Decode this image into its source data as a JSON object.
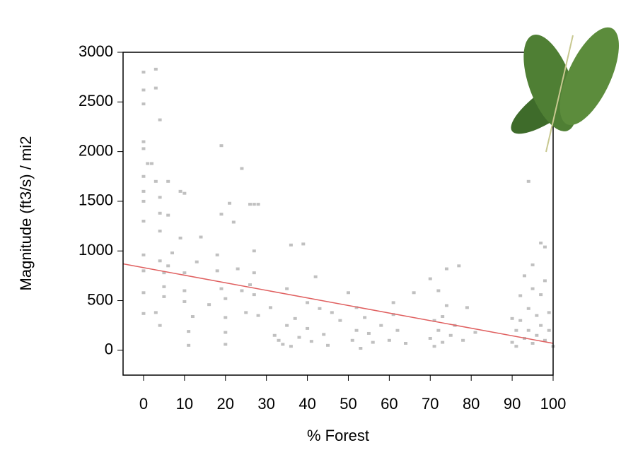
{
  "chart_data": {
    "type": "scatter",
    "xlabel": "% Forest",
    "ylabel": "Magnitude (ft3/s) / mi2",
    "xlim": [
      -5,
      100
    ],
    "ylim": [
      -250,
      3000
    ],
    "xticks": [
      0,
      10,
      20,
      30,
      40,
      50,
      60,
      70,
      80,
      90,
      100
    ],
    "yticks": [
      0,
      500,
      1000,
      1500,
      2000,
      2500,
      3000
    ],
    "color": "#c0c0c0",
    "x": [
      0,
      0,
      0,
      0,
      0,
      0,
      0,
      0,
      0,
      0,
      0,
      0,
      0,
      1,
      2,
      3,
      3,
      4,
      3,
      4,
      4,
      4,
      4,
      5,
      5,
      5,
      4,
      3,
      6,
      6,
      7,
      6,
      9,
      10,
      9,
      10,
      10,
      10,
      11,
      11,
      12,
      13,
      14,
      16,
      19,
      19,
      18,
      18,
      19,
      20,
      20,
      20,
      20,
      21,
      22,
      23,
      24,
      24,
      25,
      26,
      27,
      28,
      27,
      27,
      27,
      28,
      26,
      31,
      32,
      33,
      34,
      35,
      35,
      36,
      36,
      37,
      38,
      39,
      40,
      40,
      41,
      42,
      43,
      44,
      45,
      46,
      48,
      50,
      51,
      52,
      52,
      53,
      54,
      55,
      56,
      58,
      60,
      61,
      61,
      62,
      64,
      66,
      70,
      70,
      71,
      71,
      72,
      72,
      73,
      73,
      74,
      74,
      75,
      76,
      77,
      78,
      79,
      81,
      90,
      90,
      91,
      91,
      92,
      92,
      93,
      93,
      94,
      94,
      94,
      95,
      95,
      96,
      96,
      97,
      97,
      97,
      98,
      98,
      98,
      99,
      99,
      100,
      95
    ],
    "values": [
      2800,
      2620,
      2480,
      2100,
      2030,
      1750,
      1600,
      1500,
      1300,
      960,
      800,
      580,
      370,
      1880,
      1880,
      2830,
      2640,
      2320,
      1700,
      1540,
      1380,
      1200,
      900,
      780,
      640,
      540,
      250,
      380,
      1700,
      1360,
      980,
      850,
      1600,
      1580,
      1130,
      780,
      600,
      490,
      50,
      190,
      340,
      890,
      1140,
      460,
      2060,
      1370,
      960,
      800,
      620,
      520,
      330,
      180,
      60,
      1480,
      1290,
      820,
      1830,
      600,
      380,
      1470,
      1470,
      1470,
      1000,
      780,
      560,
      350,
      660,
      430,
      150,
      100,
      60,
      250,
      620,
      40,
      1060,
      320,
      130,
      1070,
      480,
      220,
      90,
      740,
      420,
      160,
      50,
      380,
      300,
      580,
      100,
      200,
      430,
      20,
      330,
      170,
      80,
      250,
      100,
      480,
      360,
      200,
      70,
      580,
      720,
      120,
      40,
      300,
      600,
      200,
      80,
      340,
      820,
      450,
      150,
      250,
      850,
      100,
      430,
      180,
      320,
      80,
      200,
      40,
      550,
      300,
      120,
      750,
      1700,
      420,
      200,
      860,
      70,
      350,
      150,
      1080,
      560,
      250,
      1040,
      700,
      100,
      380,
      200,
      40,
      620
    ],
    "trend": {
      "x": [
        -5,
        100
      ],
      "values": [
        870,
        70
      ],
      "color": "#e06060"
    }
  }
}
